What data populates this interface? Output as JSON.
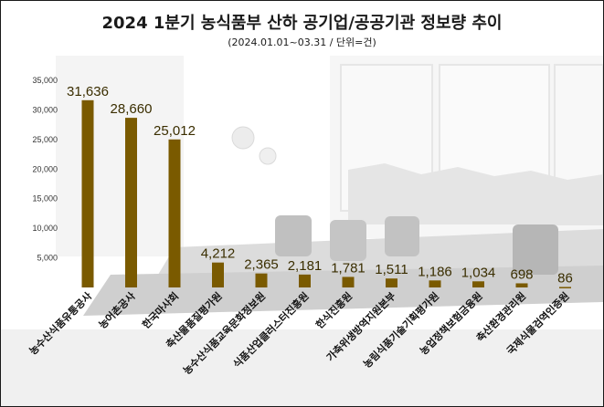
{
  "chart_data": {
    "type": "bar",
    "title": "2024 1분기 농식품부 산하 공기업/공공기관 정보량 추이",
    "subtitle": "(2024.01.01~03.31 / 단위=건)",
    "categories": [
      "농수산식품유통공사",
      "농어촌공사",
      "한국마사회",
      "축산물품질평가원",
      "농수산식품교육문화정보원",
      "식품산업클러스터진흥원",
      "한식진흥원",
      "가축위생방역지원본부",
      "농림식품기술기획평가원",
      "농업정책보험금융원",
      "축산환경관리원",
      "국제식물검역인증원"
    ],
    "values": [
      31636,
      28660,
      25012,
      4212,
      2365,
      2181,
      1781,
      1511,
      1186,
      1034,
      698,
      86
    ],
    "data_labels": [
      "31,636",
      "28,660",
      "25,012",
      "4,212",
      "2,365",
      "2,181",
      "1,781",
      "1,511",
      "1,186",
      "1,034",
      "698",
      "86"
    ],
    "y_ticks": [
      5000,
      10000,
      15000,
      20000,
      25000,
      30000,
      35000
    ],
    "y_tick_labels": [
      "5,000",
      "10,000",
      "15,000",
      "20,000",
      "25,000",
      "30,000",
      "35,000"
    ],
    "ylim": [
      0,
      35000
    ],
    "bar_color": "#7a5a00",
    "xlabel": "",
    "ylabel": "",
    "grid": false
  }
}
